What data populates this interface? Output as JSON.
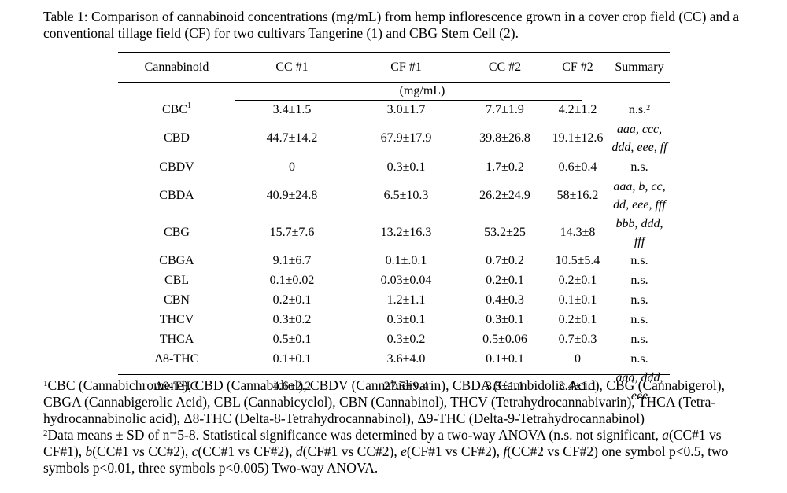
{
  "caption": "Table 1: Comparison of cannabinoid concentrations (mg/mL) from hemp inflorescence grown in a cover crop field (CC) and a conventional tillage field (CF) for two cultivars Tangerine (1) and CBG Stem Cell (2).",
  "headers": [
    "Cannabinoid",
    "CC #1",
    "CF #1",
    "CC #2",
    "CF #2",
    "Summary"
  ],
  "units": "(mg/mL)",
  "rows": [
    {
      "name": "CBC",
      "sup": "1",
      "cc1": "3.4±1.5",
      "cf1": "3.0±1.7",
      "cc2": "7.7±1.9",
      "cf2": "4.2±1.2",
      "summary": [
        "n.s."
      ],
      "summary_sup": "2",
      "sig": false
    },
    {
      "name": "CBD",
      "cc1": "44.7±14.2",
      "cf1": "67.9±17.9",
      "cc2": "39.8±26.8",
      "cf2": "19.1±12.6",
      "summary": [
        "aaa, ccc,",
        "ddd, eee, ff"
      ],
      "sig": true
    },
    {
      "name": "CBDV",
      "cc1": "0",
      "cf1": "0.3±0.1",
      "cc2": "1.7±0.2",
      "cf2": "0.6±0.4",
      "summary": [
        "n.s."
      ],
      "sig": false
    },
    {
      "name": "CBDA",
      "cc1": "40.9±24.8",
      "cf1": "6.5±10.3",
      "cc2": "26.2±24.9",
      "cf2": "58±16.2",
      "summary": [
        "aaa, b, cc,",
        "dd, eee, fff"
      ],
      "sig": true
    },
    {
      "name": "CBG",
      "cc1": "15.7±7.6",
      "cf1": "13.2±16.3",
      "cc2": "53.2±25",
      "cf2": "14.3±8",
      "summary": [
        "bbb, ddd, fff"
      ],
      "sig": true
    },
    {
      "name": "CBGA",
      "cc1": "9.1±6.7",
      "cf1": "0.1±.0.1",
      "cc2": "0.7±0.2",
      "cf2": "10.5±5.4",
      "summary": [
        "n.s."
      ],
      "sig": false
    },
    {
      "name": "CBL",
      "cc1": "0.1±0.02",
      "cf1": "0.03±0.04",
      "cc2": "0.2±0.1",
      "cf2": "0.2±0.1",
      "summary": [
        "n.s."
      ],
      "sig": false
    },
    {
      "name": "CBN",
      "cc1": "0.2±0.1",
      "cf1": "1.2±1.1",
      "cc2": "0.4±0.3",
      "cf2": "0.1±0.1",
      "summary": [
        "n.s."
      ],
      "sig": false
    },
    {
      "name": "THCV",
      "cc1": "0.3±0.2",
      "cf1": "0.3±0.1",
      "cc2": "0.3±0.1",
      "cf2": "0.2±0.1",
      "summary": [
        "n.s."
      ],
      "sig": false
    },
    {
      "name": "THCA",
      "cc1": "0.5±0.1",
      "cf1": "0.3±0.2",
      "cc2": "0.5±0.06",
      "cf2": "0.7±0.3",
      "summary": [
        "n.s."
      ],
      "sig": false
    },
    {
      "name": "Δ8-THC",
      "cc1": "0.1±0.1",
      "cf1": "3.6±4.0",
      "cc2": "0.1±0.1",
      "cf2": "0",
      "summary": [
        "n.s."
      ],
      "sig": false
    },
    {
      "name": "Δ9-THC",
      "cc1": "4.6±2.2",
      "cf1": "27.5±9.4",
      "cc2": "3.5±1.1",
      "cf2": "3.4±1.1",
      "summary": [
        "aaa, ddd, eee"
      ],
      "sig": true
    }
  ],
  "footnote1": {
    "sup": "1",
    "text": "CBC (Cannabichromene), CBD (Cannabidiol), CBDV (Cannabidivarin), CBDA (Cannbidolic Acid), CBG (Cannabigerol), CBGA (Cannabigerolic Acid), CBL (Cannabicyclol), CBN (Cannabinol), THCV (Tetrahydrocannabivarin), THCA (Tetra-hydrocannabinolic acid), Δ8-THC (Delta-8-Tetrahydrocannabinol), Δ9-THC (Delta-9-Tetrahydrocannabinol)"
  },
  "footnote2": {
    "sup": "2",
    "t1": "Data means ± SD of n=5-8. Statistical significance was determined by a two-way ANOVA (n.s. not significant, ",
    "a": "a",
    "t2": "(CC#1 vs CF#1), ",
    "b": "b",
    "t3": "(CC#1 vs CC#2), ",
    "c": "c",
    "t4": "(CC#1 vs CF#2), ",
    "d": "d",
    "t5": "(CF#1 vs CC#2), ",
    "e": "e",
    "t6": "(CF#1 vs CF#2), ",
    "f": "f",
    "t7": "(CC#2 vs CF#2) one symbol p<0.5, two symbols p<0.01, three symbols p<0.005) Two-way ANOVA."
  }
}
